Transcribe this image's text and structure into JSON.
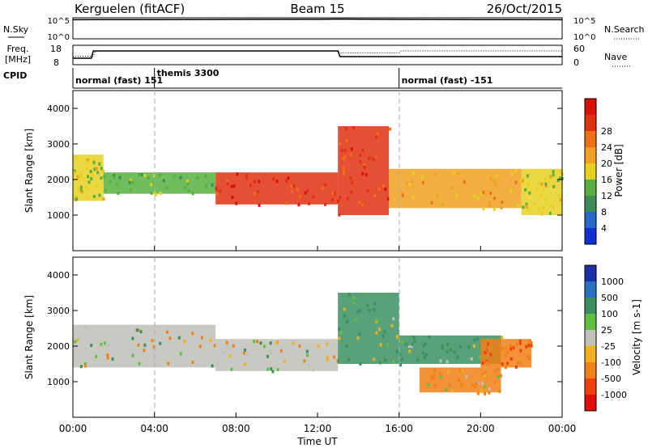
{
  "header": {
    "station": "Kerguelen (fitACF)",
    "beam": "Beam 15",
    "date": "26/Oct/2015"
  },
  "noise_panel": {
    "left_label": "N.Sky",
    "right_label": "N.Search",
    "y_top_tick": "10^5",
    "y_bottom_tick": "10^0"
  },
  "freq_panel": {
    "label_line1": "Freq.",
    "label_line2": "[MHz]",
    "right_label": "Nave",
    "left_ticks": [
      "18",
      "8"
    ],
    "right_ticks": [
      "60",
      "0"
    ]
  },
  "cpid": {
    "label": "CPID",
    "segments": [
      {
        "label": "normal (fast) 151",
        "start_hour": 0.0
      },
      {
        "label": "themis 3300",
        "start_hour": 4.0
      },
      {
        "label": "normal (fast) -151",
        "start_hour": 16.0
      }
    ]
  },
  "x_axis": {
    "label": "Time UT",
    "ticks": [
      "00:00",
      "04:00",
      "08:00",
      "12:00",
      "16:00",
      "20:00",
      "00:00"
    ]
  },
  "power_panel": {
    "ylabel": "Slant Range [km]",
    "yticks": [
      "1000",
      "2000",
      "3000",
      "4000"
    ],
    "colorbar_label": "Power [dB]",
    "colorbar_ticks": [
      "4",
      "8",
      "12",
      "16",
      "20",
      "24",
      "28"
    ],
    "colorbar_colors": [
      "#1030d0",
      "#2868c8",
      "#3c8c5a",
      "#58b040",
      "#e8d020",
      "#f0a020",
      "#f07018",
      "#e03010",
      "#d81008"
    ]
  },
  "velocity_panel": {
    "ylabel": "Slant Range [km]",
    "yticks": [
      "1000",
      "2000",
      "3000",
      "4000"
    ],
    "colorbar_label": "Velocity [m s-1]",
    "colorbar_ticks": [
      "1000",
      "500",
      "100",
      "25",
      "-25",
      "-100",
      "-500",
      "-1000"
    ],
    "colorbar_colors": [
      "#1a2fa8",
      "#2a70c0",
      "#3c9060",
      "#60c040",
      "#c0c0b8",
      "#f0b020",
      "#f08018",
      "#f04010",
      "#e01008"
    ]
  },
  "chart_data": [
    {
      "type": "line",
      "title": "Kerguelen (fitACF)  Beam 15  26/Oct/2015",
      "x_range_hours": [
        0,
        24
      ],
      "series": [
        {
          "name": "N.Sky",
          "x": [
            0,
            0.5,
            1,
            4,
            8,
            12,
            13,
            16,
            20,
            24
          ],
          "values": [
            80000,
            80000,
            90000,
            90000,
            100000,
            110000,
            120000,
            100000,
            90000,
            80000
          ]
        },
        {
          "name": "N.Search",
          "x": [
            0,
            6,
            12,
            18,
            24
          ],
          "values": [
            100000,
            100000,
            100000,
            100000,
            100000
          ]
        }
      ]
    },
    {
      "type": "line",
      "title": "Freq. [MHz] / Nave",
      "x_range_hours": [
        0,
        24
      ],
      "ylim": [
        8,
        18
      ],
      "series": [
        {
          "name": "Freq.",
          "x": [
            0,
            0.9,
            1.0,
            13.0,
            13.1,
            24
          ],
          "values": [
            11,
            11,
            15.5,
            15.5,
            12,
            12
          ]
        },
        {
          "name": "Nave",
          "x": [
            0,
            1.0,
            1.1,
            13.0,
            13.1,
            16,
            16.1,
            24
          ],
          "values": [
            25,
            25,
            45,
            45,
            38,
            38,
            45,
            45
          ]
        }
      ]
    },
    {
      "type": "heatmap",
      "title": "Power [dB]",
      "xlabel": "Time UT",
      "ylabel": "Slant Range [km]",
      "x_range_hours": [
        0,
        24
      ],
      "ylim": [
        0,
        4500
      ],
      "zlim": [
        0,
        30
      ],
      "regions": [
        {
          "t0": 0.0,
          "t1": 1.5,
          "r0": 1400,
          "r1": 2700,
          "value": 14
        },
        {
          "t0": 1.5,
          "t1": 7.0,
          "r0": 1600,
          "r1": 2200,
          "value": 12
        },
        {
          "t0": 7.0,
          "t1": 13.0,
          "r0": 1300,
          "r1": 2200,
          "value": 26
        },
        {
          "t0": 13.0,
          "t1": 15.5,
          "r0": 1000,
          "r1": 3500,
          "value": 24
        },
        {
          "t0": 15.5,
          "t1": 22.0,
          "r0": 1200,
          "r1": 2300,
          "value": 18
        },
        {
          "t0": 22.0,
          "t1": 24.0,
          "r0": 1000,
          "r1": 2300,
          "value": 14
        }
      ]
    },
    {
      "type": "heatmap",
      "title": "Velocity [m s-1]",
      "xlabel": "Time UT",
      "ylabel": "Slant Range [km]",
      "x_range_hours": [
        0,
        24
      ],
      "ylim": [
        0,
        4500
      ],
      "zlim": [
        -1000,
        1000
      ],
      "regions": [
        {
          "t0": 0.0,
          "t1": 7.0,
          "r0": 1400,
          "r1": 2600,
          "value": 0
        },
        {
          "t0": 7.0,
          "t1": 13.0,
          "r0": 1300,
          "r1": 2200,
          "value": 0
        },
        {
          "t0": 13.0,
          "t1": 16.0,
          "r0": 1500,
          "r1": 3500,
          "value": 150
        },
        {
          "t0": 16.0,
          "t1": 21.0,
          "r0": 1500,
          "r1": 2300,
          "value": 200
        },
        {
          "t0": 17.0,
          "t1": 21.0,
          "r0": 700,
          "r1": 1400,
          "value": -150
        },
        {
          "t0": 20.0,
          "t1": 22.5,
          "r0": 1400,
          "r1": 2200,
          "value": -500
        }
      ]
    }
  ]
}
